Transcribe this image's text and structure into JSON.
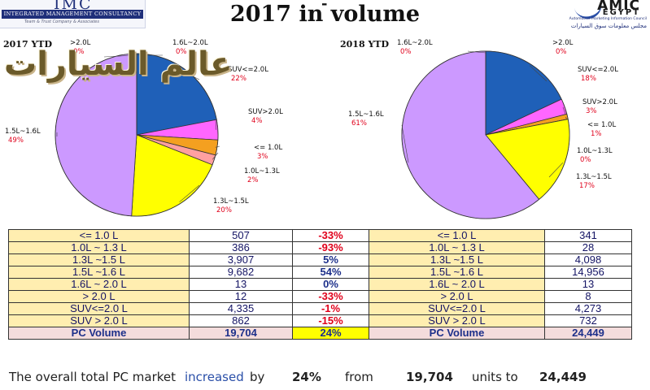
{
  "header": {
    "title_partial": "-",
    "title": "2017 in volume",
    "left_logo": {
      "mark": "IMC",
      "name": "INTEGRATED MANAGEMENT CONSULTANCY",
      "tagline": "Team & Trust Company & Associates"
    },
    "right_logo": {
      "mark": "AMIC",
      "country": "EGYPT",
      "line1": "Automotive Marketing Information Council",
      "line2": "مجلس معلومات سوق السيارات"
    },
    "watermark": "عالم السيارات"
  },
  "colors": {
    "le_1_0": "#f4a020",
    "l1_0_1_3": "#ffa0a0",
    "l1_3_1_5": "#ffff00",
    "l1_5_1_6": "#cc99ff",
    "l1_6_2_0": "#d9c9ef",
    "gt_2_0": "#eee8f8",
    "suv_le_2_0": "#1f60b8",
    "suv_gt_2_0": "#ff66ff",
    "negative": "#e0001b",
    "positive": "#1c2f8a"
  },
  "chart_data": [
    {
      "type": "pie",
      "title": "2017 YTD",
      "slices": [
        {
          "label": "SUV<=2.0L",
          "value": 22,
          "pct_label": "22%",
          "color_key": "suv_le_2_0"
        },
        {
          "label": "SUV>2.0L",
          "value": 4,
          "pct_label": "4%",
          "color_key": "suv_gt_2_0"
        },
        {
          "label": "<= 1.0L",
          "value": 3,
          "pct_label": "3%",
          "color_key": "le_1_0"
        },
        {
          "label": "1.0L~1.3L",
          "value": 2,
          "pct_label": "2%",
          "color_key": "l1_0_1_3"
        },
        {
          "label": "1.3L~1.5L",
          "value": 20,
          "pct_label": "20%",
          "color_key": "l1_3_1_5"
        },
        {
          "label": "1.5L~1.6L",
          "value": 49,
          "pct_label": "49%",
          "color_key": "l1_5_1_6"
        },
        {
          "label": ">2.0L",
          "value": 0,
          "pct_label": "0%",
          "color_key": "gt_2_0"
        },
        {
          "label": "1.6L~2.0L",
          "value": 0,
          "pct_label": "0%",
          "color_key": "l1_6_2_0"
        }
      ]
    },
    {
      "type": "pie",
      "title": "2018 YTD",
      "slices": [
        {
          "label": ">2.0L",
          "value": 0,
          "pct_label": "0%",
          "color_key": "gt_2_0"
        },
        {
          "label": "SUV<=2.0L",
          "value": 18,
          "pct_label": "18%",
          "color_key": "suv_le_2_0"
        },
        {
          "label": "SUV>2.0L",
          "value": 3,
          "pct_label": "3%",
          "color_key": "suv_gt_2_0"
        },
        {
          "label": "<= 1.0L",
          "value": 1,
          "pct_label": "1%",
          "color_key": "le_1_0"
        },
        {
          "label": "1.0L~1.3L",
          "value": 0,
          "pct_label": "0%",
          "color_key": "l1_0_1_3"
        },
        {
          "label": "1.3L~1.5L",
          "value": 17,
          "pct_label": "17%",
          "color_key": "l1_3_1_5"
        },
        {
          "label": "1.5L~1.6L",
          "value": 61,
          "pct_label": "61%",
          "color_key": "l1_5_1_6"
        },
        {
          "label": "1.6L~2.0L",
          "value": 0,
          "pct_label": "0%",
          "color_key": "l1_6_2_0"
        }
      ]
    },
    {
      "type": "table",
      "rows": [
        {
          "seg2017": "<= 1.0 L",
          "v2017": "507",
          "change": "-33%",
          "seg2018": "<= 1.0 L",
          "v2018": "341"
        },
        {
          "seg2017": "1.0L ~ 1.3 L",
          "v2017": "386",
          "change": "-93%",
          "seg2018": "1.0L ~ 1.3 L",
          "v2018": "28"
        },
        {
          "seg2017": "1.3L ~1.5 L",
          "v2017": "3,907",
          "change": "5%",
          "seg2018": "1.3L ~1.5 L",
          "v2018": "4,098"
        },
        {
          "seg2017": "1.5L ~1.6 L",
          "v2017": "9,682",
          "change": "54%",
          "seg2018": "1.5L ~1.6 L",
          "v2018": "14,956"
        },
        {
          "seg2017": "1.6L ~ 2.0 L",
          "v2017": "13",
          "change": "0%",
          "seg2018": "1.6L ~ 2.0 L",
          "v2018": "13"
        },
        {
          "seg2017": "> 2.0 L",
          "v2017": "12",
          "change": "-33%",
          "seg2018": "> 2.0 L",
          "v2018": "8"
        },
        {
          "seg2017": "SUV<=2.0 L",
          "v2017": "4,335",
          "change": "-1%",
          "seg2018": "SUV<=2.0 L",
          "v2018": "4,273"
        },
        {
          "seg2017": "SUV > 2.0 L",
          "v2017": "862",
          "change": "-15%",
          "seg2018": "SUV > 2.0 L",
          "v2018": "732"
        }
      ],
      "total": {
        "seg2017": "PC Volume",
        "v2017": "19,704",
        "change": "24%",
        "seg2018": "PC Volume",
        "v2018": "24,449"
      }
    }
  ],
  "summary": {
    "p1": "The overall total PC market",
    "p2": "increased",
    "p3": "by",
    "pct": "24%",
    "p4": "from",
    "from_val": "19,704",
    "p5": "units to",
    "to_val": "24,449"
  }
}
